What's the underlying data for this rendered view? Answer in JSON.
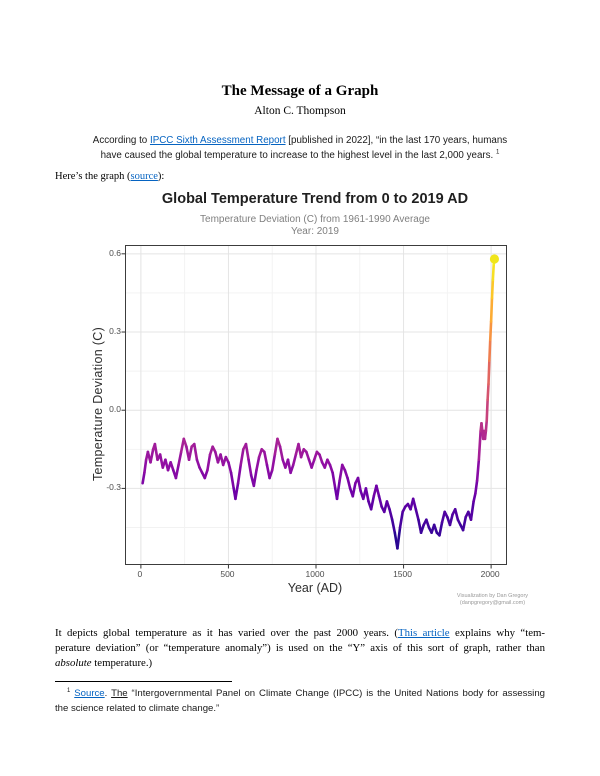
{
  "document": {
    "title": "The Message of a Graph",
    "author": "Alton C. Thompson",
    "link_color": "#0563c1",
    "intro_lines": [
      [
        {
          "t": "According to "
        },
        {
          "t": "IPCC Sixth Assessment Report",
          "s": "link",
          "n": "ipcc-report-link"
        },
        {
          "t": " [published in 2022], “in the last 170 years, humans"
        }
      ],
      [
        {
          "t": "have caused the global temperature to increase to the highest level in the last 2,000 years. "
        },
        {
          "t": "1",
          "s": "sup"
        }
      ]
    ],
    "graph_intro": [
      {
        "t": "Here’s the graph ("
      },
      {
        "t": "source",
        "s": "link",
        "n": "graph-source-link"
      },
      {
        "t": "):"
      }
    ],
    "caption_lines": [
      [
        {
          "t": "It depicts global temperature as it has varied over the past 2000 years.  ("
        },
        {
          "t": "This article",
          "s": "link",
          "n": "this-article-link"
        },
        {
          "t": " explains why “tem-"
        }
      ],
      [
        {
          "t": "perature deviation” (or “temperature anomaly”) is used on the “Y” axis of this sort of graph, rather than"
        }
      ],
      [
        {
          "t": "absolute",
          "s": "i"
        },
        {
          "t": " temperature.)"
        }
      ]
    ],
    "footnote_lines": [
      [
        {
          "t": "1",
          "s": "sup"
        },
        {
          "t": " "
        },
        {
          "t": "Source",
          "s": "link",
          "n": "footnote-source-link"
        },
        {
          "t": ". "
        },
        {
          "t": "The",
          "s": "ulink",
          "n": "footnote-the-link"
        },
        {
          "t": " “Intergovernmental Panel on Climate Change (IPCC) is the United Nations body for assessing"
        }
      ],
      [
        {
          "t": "the science related to climate change.”"
        }
      ]
    ]
  },
  "chart_data": {
    "type": "line",
    "title": "Global Temperature Trend from 0 to 2019 AD",
    "subtitle": "Temperature Deviation (C) from 1961-1990 Average",
    "subtitle2": "Year:  2019",
    "xlabel": "Year (AD)",
    "ylabel": "Temperature Deviation (C)",
    "xlim": [
      -85,
      2085
    ],
    "ylim": [
      -0.59,
      0.63
    ],
    "grid": true,
    "legend": "none",
    "x_ticks": [
      {
        "v": 0,
        "label": "0"
      },
      {
        "v": 500,
        "label": "500"
      },
      {
        "v": 1000,
        "label": "1000"
      },
      {
        "v": 1500,
        "label": "1500"
      },
      {
        "v": 2000,
        "label": "2000"
      }
    ],
    "y_ticks": [
      {
        "v": 0.6,
        "label": "0.6"
      },
      {
        "v": 0.3,
        "label": "0.3"
      },
      {
        "v": 0,
        "label": "0.0"
      },
      {
        "v": -0.3,
        "label": "-0.3"
      }
    ],
    "x_minor": [
      250,
      750,
      1250,
      1750
    ],
    "y_minor": [
      0.45,
      0.15,
      -0.15,
      -0.45
    ],
    "grid_major_color": "#e4e4e4",
    "grid_minor_color": "#f2f2f2",
    "border_color": "#3c3c3c",
    "colormap": "plasma",
    "colormap_stops": [
      [
        0,
        "#0d0887"
      ],
      [
        0.1,
        "#41049d"
      ],
      [
        0.2,
        "#6a00a8"
      ],
      [
        0.3,
        "#8f0da4"
      ],
      [
        0.4,
        "#b12a90"
      ],
      [
        0.5,
        "#cc4778"
      ],
      [
        0.6,
        "#e16462"
      ],
      [
        0.7,
        "#f2844b"
      ],
      [
        0.8,
        "#fca636"
      ],
      [
        0.9,
        "#fcce25"
      ],
      [
        1,
        "#f0f921"
      ]
    ],
    "color_domain": [
      -0.56,
      0.6
    ],
    "end_point": {
      "year": 2019,
      "value": 0.58,
      "color": "#f0e51b"
    },
    "attribution": [
      "Visualization by Dan Gregory",
      "(danpgregory@gmail.com)"
    ],
    "series": [
      {
        "name": "Temperature Deviation (C)",
        "points": [
          [
            10,
            -0.28
          ],
          [
            20,
            -0.24
          ],
          [
            30,
            -0.19
          ],
          [
            40,
            -0.16
          ],
          [
            55,
            -0.2
          ],
          [
            70,
            -0.15
          ],
          [
            80,
            -0.13
          ],
          [
            95,
            -0.19
          ],
          [
            110,
            -0.17
          ],
          [
            125,
            -0.22
          ],
          [
            140,
            -0.19
          ],
          [
            155,
            -0.23
          ],
          [
            170,
            -0.2
          ],
          [
            185,
            -0.23
          ],
          [
            200,
            -0.26
          ],
          [
            215,
            -0.21
          ],
          [
            230,
            -0.16
          ],
          [
            245,
            -0.11
          ],
          [
            260,
            -0.14
          ],
          [
            275,
            -0.19
          ],
          [
            290,
            -0.14
          ],
          [
            305,
            -0.13
          ],
          [
            320,
            -0.19
          ],
          [
            335,
            -0.22
          ],
          [
            350,
            -0.24
          ],
          [
            365,
            -0.26
          ],
          [
            380,
            -0.23
          ],
          [
            395,
            -0.17
          ],
          [
            410,
            -0.14
          ],
          [
            425,
            -0.16
          ],
          [
            440,
            -0.2
          ],
          [
            455,
            -0.17
          ],
          [
            470,
            -0.21
          ],
          [
            485,
            -0.18
          ],
          [
            500,
            -0.2
          ],
          [
            515,
            -0.24
          ],
          [
            530,
            -0.3
          ],
          [
            540,
            -0.34
          ],
          [
            555,
            -0.28
          ],
          [
            570,
            -0.21
          ],
          [
            585,
            -0.15
          ],
          [
            600,
            -0.13
          ],
          [
            615,
            -0.19
          ],
          [
            630,
            -0.25
          ],
          [
            645,
            -0.29
          ],
          [
            660,
            -0.23
          ],
          [
            675,
            -0.18
          ],
          [
            690,
            -0.15
          ],
          [
            705,
            -0.16
          ],
          [
            720,
            -0.21
          ],
          [
            735,
            -0.26
          ],
          [
            750,
            -0.23
          ],
          [
            765,
            -0.17
          ],
          [
            780,
            -0.11
          ],
          [
            795,
            -0.14
          ],
          [
            810,
            -0.19
          ],
          [
            825,
            -0.22
          ],
          [
            840,
            -0.19
          ],
          [
            855,
            -0.24
          ],
          [
            870,
            -0.21
          ],
          [
            885,
            -0.17
          ],
          [
            900,
            -0.13
          ],
          [
            915,
            -0.18
          ],
          [
            930,
            -0.15
          ],
          [
            945,
            -0.16
          ],
          [
            960,
            -0.19
          ],
          [
            975,
            -0.22
          ],
          [
            990,
            -0.19
          ],
          [
            1005,
            -0.16
          ],
          [
            1020,
            -0.17
          ],
          [
            1035,
            -0.2
          ],
          [
            1050,
            -0.22
          ],
          [
            1065,
            -0.19
          ],
          [
            1080,
            -0.21
          ],
          [
            1095,
            -0.24
          ],
          [
            1110,
            -0.3
          ],
          [
            1120,
            -0.34
          ],
          [
            1135,
            -0.27
          ],
          [
            1150,
            -0.21
          ],
          [
            1165,
            -0.23
          ],
          [
            1180,
            -0.26
          ],
          [
            1195,
            -0.3
          ],
          [
            1210,
            -0.33
          ],
          [
            1225,
            -0.28
          ],
          [
            1240,
            -0.26
          ],
          [
            1255,
            -0.31
          ],
          [
            1270,
            -0.34
          ],
          [
            1285,
            -0.3
          ],
          [
            1300,
            -0.35
          ],
          [
            1315,
            -0.38
          ],
          [
            1330,
            -0.33
          ],
          [
            1345,
            -0.29
          ],
          [
            1360,
            -0.33
          ],
          [
            1375,
            -0.37
          ],
          [
            1390,
            -0.39
          ],
          [
            1405,
            -0.35
          ],
          [
            1420,
            -0.38
          ],
          [
            1435,
            -0.42
          ],
          [
            1450,
            -0.47
          ],
          [
            1465,
            -0.53
          ],
          [
            1480,
            -0.45
          ],
          [
            1495,
            -0.39
          ],
          [
            1510,
            -0.37
          ],
          [
            1525,
            -0.36
          ],
          [
            1540,
            -0.38
          ],
          [
            1555,
            -0.34
          ],
          [
            1570,
            -0.38
          ],
          [
            1585,
            -0.42
          ],
          [
            1600,
            -0.47
          ],
          [
            1615,
            -0.44
          ],
          [
            1630,
            -0.42
          ],
          [
            1645,
            -0.45
          ],
          [
            1660,
            -0.47
          ],
          [
            1675,
            -0.44
          ],
          [
            1690,
            -0.47
          ],
          [
            1705,
            -0.48
          ],
          [
            1720,
            -0.43
          ],
          [
            1735,
            -0.39
          ],
          [
            1750,
            -0.41
          ],
          [
            1765,
            -0.44
          ],
          [
            1780,
            -0.4
          ],
          [
            1795,
            -0.38
          ],
          [
            1810,
            -0.42
          ],
          [
            1825,
            -0.44
          ],
          [
            1840,
            -0.46
          ],
          [
            1855,
            -0.41
          ],
          [
            1870,
            -0.39
          ],
          [
            1885,
            -0.42
          ],
          [
            1900,
            -0.35
          ],
          [
            1910,
            -0.32
          ],
          [
            1920,
            -0.27
          ],
          [
            1930,
            -0.19
          ],
          [
            1940,
            -0.08
          ],
          [
            1945,
            -0.05
          ],
          [
            1950,
            -0.08
          ],
          [
            1955,
            -0.11
          ],
          [
            1960,
            -0.08
          ],
          [
            1965,
            -0.11
          ],
          [
            1970,
            -0.08
          ],
          [
            1975,
            -0.04
          ],
          [
            1980,
            0.04
          ],
          [
            1985,
            0.1
          ],
          [
            1990,
            0.19
          ],
          [
            1995,
            0.27
          ],
          [
            2000,
            0.34
          ],
          [
            2005,
            0.43
          ],
          [
            2010,
            0.5
          ],
          [
            2015,
            0.56
          ],
          [
            2019,
            0.58
          ]
        ]
      }
    ]
  }
}
